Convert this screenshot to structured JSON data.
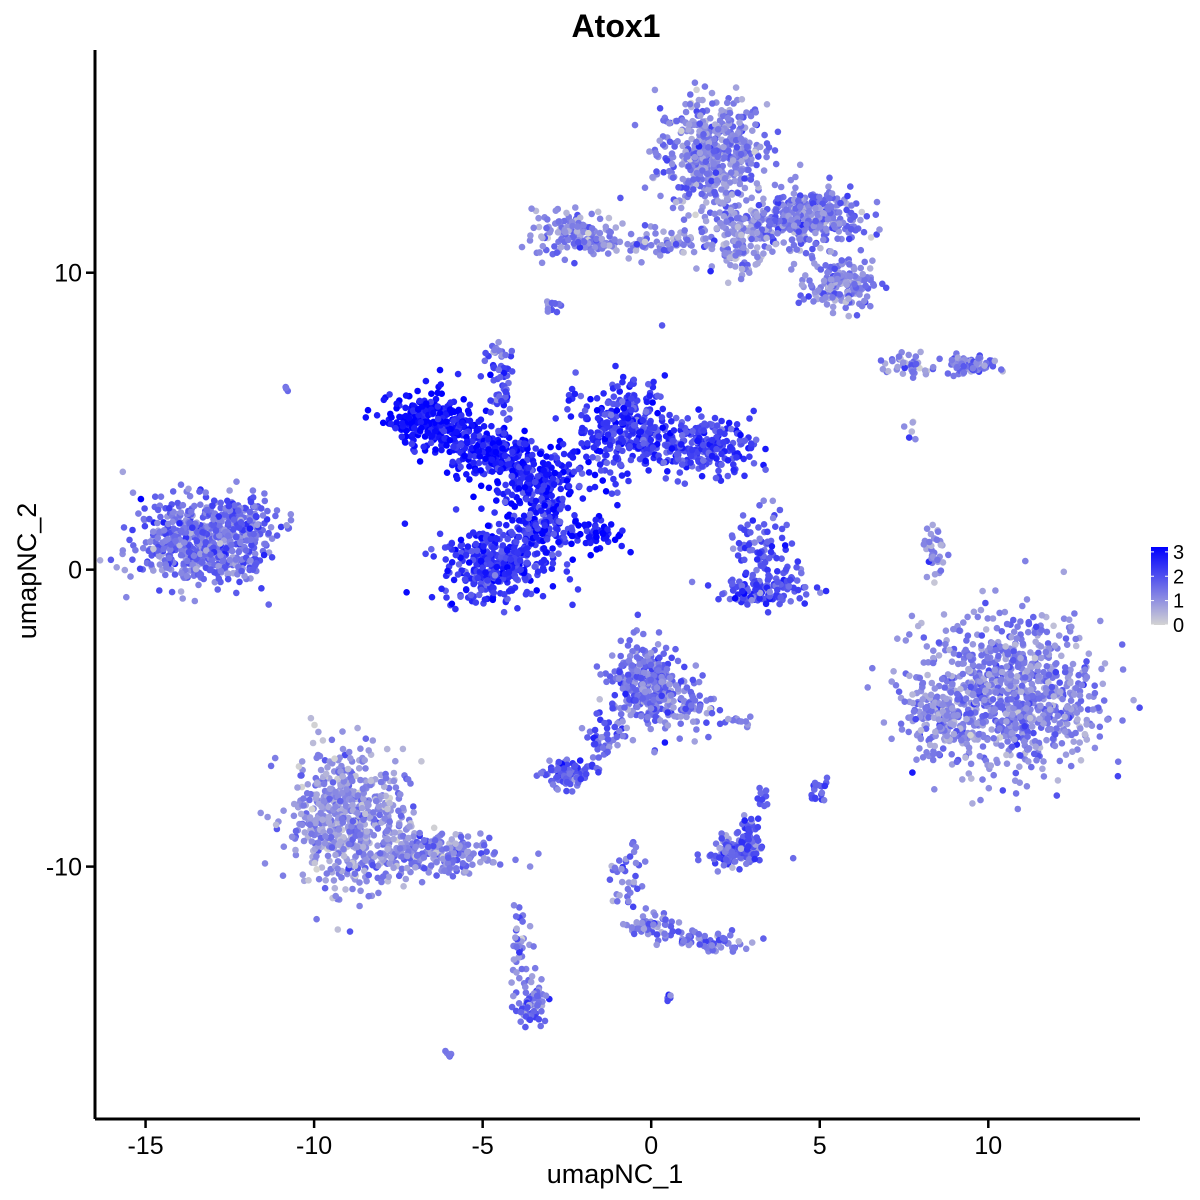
{
  "chart_data": {
    "type": "scatter",
    "title": "Atox1",
    "xlabel": "umapNC_1",
    "ylabel": "umapNC_2",
    "xlim": [
      -16.5,
      14.5
    ],
    "ylim": [
      -18.5,
      17.5
    ],
    "x_ticks": [
      -15,
      -10,
      -5,
      0,
      5,
      10
    ],
    "x_tick_labels": [
      "-15",
      "-10",
      "-5",
      "0",
      "5",
      "10"
    ],
    "y_ticks": [
      -10,
      0,
      10
    ],
    "y_tick_labels": [
      "-10",
      "0",
      "10"
    ],
    "grid": false,
    "legend": {
      "position": "right",
      "type": "colorbar",
      "ticks": [
        0,
        1,
        2,
        3
      ],
      "tick_labels": [
        "0",
        "1",
        "2",
        "3"
      ],
      "low_color": "#d3d3d3",
      "high_color": "#0000ff",
      "range": [
        0,
        3.2
      ]
    },
    "clusters": [
      {
        "cx": 1.8,
        "cy": 14.0,
        "sx": 1.0,
        "sy": 1.2,
        "n": 520,
        "expr": 1.2
      },
      {
        "cx": 4.6,
        "cy": 11.8,
        "sx": 1.0,
        "sy": 0.6,
        "n": 380,
        "expr": 1.3
      },
      {
        "cx": 5.6,
        "cy": 9.6,
        "sx": 0.6,
        "sy": 0.5,
        "n": 170,
        "expr": 1.1
      },
      {
        "cx": -2.2,
        "cy": 11.3,
        "sx": 0.8,
        "sy": 0.5,
        "n": 150,
        "expr": 1.2
      },
      {
        "cx": 0.3,
        "cy": 11.0,
        "sx": 1.2,
        "sy": 0.3,
        "n": 90,
        "expr": 1.1
      },
      {
        "cx": 2.6,
        "cy": 11.0,
        "sx": 0.5,
        "sy": 0.6,
        "n": 120,
        "expr": 1.0
      },
      {
        "cx": -6.5,
        "cy": 5.0,
        "sx": 0.8,
        "sy": 0.6,
        "n": 260,
        "expr": 3.0
      },
      {
        "cx": -4.8,
        "cy": 4.0,
        "sx": 0.9,
        "sy": 0.5,
        "n": 220,
        "expr": 2.8
      },
      {
        "cx": -3.3,
        "cy": 3.0,
        "sx": 0.9,
        "sy": 0.6,
        "n": 200,
        "expr": 2.7
      },
      {
        "cx": -0.9,
        "cy": 4.8,
        "sx": 0.8,
        "sy": 1.0,
        "n": 300,
        "expr": 2.3
      },
      {
        "cx": 1.5,
        "cy": 4.2,
        "sx": 1.0,
        "sy": 0.6,
        "n": 260,
        "expr": 2.2
      },
      {
        "cx": -4.6,
        "cy": 0.2,
        "sx": 1.0,
        "sy": 0.8,
        "n": 380,
        "expr": 2.4
      },
      {
        "cx": -3.2,
        "cy": 1.5,
        "sx": 0.6,
        "sy": 0.6,
        "n": 120,
        "expr": 2.5
      },
      {
        "cx": -1.7,
        "cy": 1.2,
        "sx": 0.6,
        "sy": 0.3,
        "n": 50,
        "expr": 2.8
      },
      {
        "cx": -4.5,
        "cy": 6.3,
        "sx": 0.3,
        "sy": 0.9,
        "n": 50,
        "expr": 2.0
      },
      {
        "cx": 3.3,
        "cy": 0.6,
        "sx": 0.6,
        "sy": 0.9,
        "n": 90,
        "expr": 1.9
      },
      {
        "cx": 3.4,
        "cy": -0.7,
        "sx": 0.9,
        "sy": 0.3,
        "n": 120,
        "expr": 2.0
      },
      {
        "cx": -13.6,
        "cy": 1.0,
        "sx": 1.1,
        "sy": 0.9,
        "n": 520,
        "expr": 1.5
      },
      {
        "cx": -12.0,
        "cy": 1.5,
        "sx": 0.6,
        "sy": 0.6,
        "n": 120,
        "expr": 1.6
      },
      {
        "cx": -12.6,
        "cy": 0.1,
        "sx": 0.5,
        "sy": 0.3,
        "n": 50,
        "expr": 1.5
      },
      {
        "cx": -9.0,
        "cy": -8.4,
        "sx": 1.1,
        "sy": 1.4,
        "n": 650,
        "expr": 1.0
      },
      {
        "cx": -6.5,
        "cy": -9.6,
        "sx": 1.1,
        "sy": 0.5,
        "n": 220,
        "expr": 1.2
      },
      {
        "cx": -3.6,
        "cy": -14.5,
        "sx": 0.3,
        "sy": 0.6,
        "n": 70,
        "expr": 1.5
      },
      {
        "cx": -3.9,
        "cy": -12.5,
        "sx": 0.2,
        "sy": 0.9,
        "n": 35,
        "expr": 1.4
      },
      {
        "cx": -0.2,
        "cy": -3.9,
        "sx": 0.6,
        "sy": 0.9,
        "n": 300,
        "expr": 1.5
      },
      {
        "cx": 1.0,
        "cy": -4.5,
        "sx": 0.5,
        "sy": 0.7,
        "n": 80,
        "expr": 1.4
      },
      {
        "cx": -2.5,
        "cy": -6.9,
        "sx": 0.4,
        "sy": 0.3,
        "n": 90,
        "expr": 1.8
      },
      {
        "cx": -1.4,
        "cy": -5.8,
        "sx": 0.4,
        "sy": 0.7,
        "n": 45,
        "expr": 1.7
      },
      {
        "cx": 2.5,
        "cy": -9.5,
        "sx": 0.5,
        "sy": 0.3,
        "n": 120,
        "expr": 1.6
      },
      {
        "cx": 2.9,
        "cy": -8.9,
        "sx": 0.2,
        "sy": 0.5,
        "n": 35,
        "expr": 1.9
      },
      {
        "cx": 0.0,
        "cy": -12.0,
        "sx": 0.4,
        "sy": 0.3,
        "n": 50,
        "expr": 1.3
      },
      {
        "cx": -0.7,
        "cy": -10.6,
        "sx": 0.3,
        "sy": 0.8,
        "n": 40,
        "expr": 1.4
      },
      {
        "cx": 1.8,
        "cy": -12.5,
        "sx": 0.8,
        "sy": 0.25,
        "n": 60,
        "expr": 1.4
      },
      {
        "cx": 10.6,
        "cy": -4.3,
        "sx": 1.7,
        "sy": 1.6,
        "n": 950,
        "expr": 1.2
      },
      {
        "cx": 8.5,
        "cy": -5.0,
        "sx": 0.5,
        "sy": 0.6,
        "n": 100,
        "expr": 1.0
      },
      {
        "cx": 9.5,
        "cy": 6.9,
        "sx": 0.5,
        "sy": 0.2,
        "n": 70,
        "expr": 1.3
      },
      {
        "cx": 7.6,
        "cy": 6.9,
        "sx": 0.6,
        "sy": 0.2,
        "n": 40,
        "expr": 1.2
      },
      {
        "cx": 8.4,
        "cy": 0.5,
        "sx": 0.2,
        "sy": 0.7,
        "n": 35,
        "expr": 1.0
      },
      {
        "cx": -3.0,
        "cy": 8.8,
        "sx": 0.2,
        "sy": 0.2,
        "n": 14,
        "expr": 1.5
      },
      {
        "cx": -4.5,
        "cy": 7.3,
        "sx": 0.2,
        "sy": 0.2,
        "n": 12,
        "expr": 1.2
      },
      {
        "cx": 5.0,
        "cy": -7.4,
        "sx": 0.2,
        "sy": 0.25,
        "n": 20,
        "expr": 1.8
      },
      {
        "cx": 3.3,
        "cy": -7.7,
        "sx": 0.1,
        "sy": 0.2,
        "n": 10,
        "expr": 1.6
      },
      {
        "cx": 2.7,
        "cy": -5.1,
        "sx": 0.3,
        "sy": 0.1,
        "n": 14,
        "expr": 1.4
      },
      {
        "cx": -6.0,
        "cy": -16.3,
        "sx": 0.1,
        "sy": 0.1,
        "n": 6,
        "expr": 1.5
      },
      {
        "cx": 0.6,
        "cy": -14.4,
        "sx": 0.1,
        "sy": 0.1,
        "n": 6,
        "expr": 2.0
      },
      {
        "cx": -10.8,
        "cy": 6.1,
        "sx": 0.1,
        "sy": 0.1,
        "n": 4,
        "expr": 1.4
      },
      {
        "cx": 7.7,
        "cy": 4.7,
        "sx": 0.15,
        "sy": 0.2,
        "n": 6,
        "expr": 1.0
      }
    ]
  }
}
